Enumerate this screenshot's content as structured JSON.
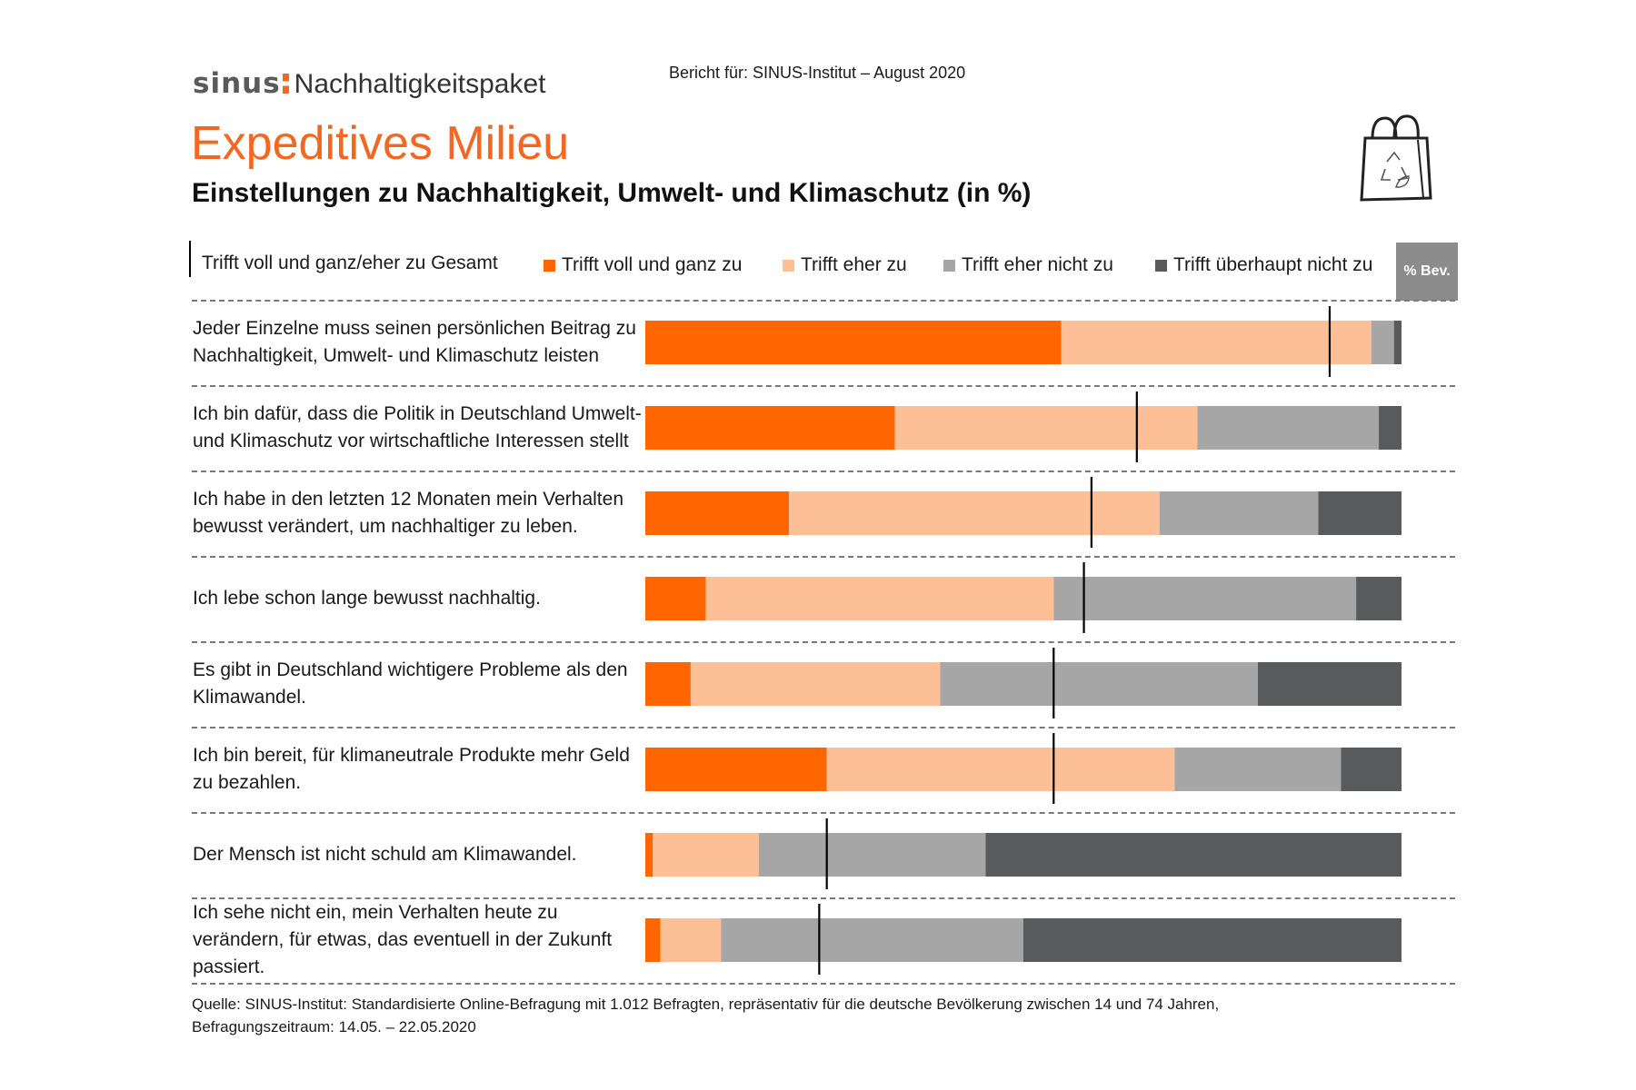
{
  "header": {
    "brand_logo": "sinus",
    "brand_name": "Nachhaltigkeitspaket",
    "report": "Bericht für: SINUS-Institut – August 2020",
    "milieu": "Expeditives Milieu",
    "subtitle": "Einstellungen zu Nachhaltigkeit, Umwelt- und Klimaschutz (in %)",
    "icon": "shopping-bag-recycle-icon"
  },
  "legend": {
    "total_label": "Trifft voll und ganz/eher zu Gesamt",
    "bev_label": "% Bev."
  },
  "colors": {
    "voll": "#ff6600",
    "eher": "#fdbf96",
    "eher_nicht": "#a6a6a6",
    "ueberhaupt_nicht": "#595a5c",
    "marker": "#000000"
  },
  "chart_data": {
    "type": "bar",
    "orientation": "horizontal",
    "stacked": true,
    "xlim": [
      0,
      100
    ],
    "categories": [
      "Jeder Einzelne muss seinen persönlichen Beitrag zu Nachhaltigkeit, Umwelt- und Klimaschutz leisten",
      "Ich bin dafür, dass die Politik in Deutschland Umwelt- und Klimaschutz vor wirtschaftliche Interessen stellt",
      "Ich habe in den letzten 12 Monaten mein Verhalten bewusst verändert, um nachhaltiger zu leben.",
      "Ich lebe schon lange bewusst nachhaltig.",
      "Es gibt in Deutschland wichtigere Probleme als den Klimawandel.",
      "Ich bin bereit, für klimaneutrale Produkte mehr Geld zu bezahlen.",
      "Der Mensch ist nicht schuld am Klimawandel.",
      "Ich sehe nicht ein, mein Verhalten heute zu verändern, für etwas, das eventuell in der Zukunft passiert."
    ],
    "series": [
      {
        "name": "Trifft voll und ganz zu",
        "color": "#ff6600",
        "values": [
          55,
          33,
          19,
          8,
          6,
          24,
          1,
          2
        ]
      },
      {
        "name": "Trifft eher zu",
        "color": "#fdbf96",
        "values": [
          41,
          40,
          49,
          46,
          33,
          46,
          14,
          8
        ]
      },
      {
        "name": "Trifft eher nicht zu",
        "color": "#a6a6a6",
        "values": [
          3,
          24,
          21,
          40,
          42,
          22,
          30,
          40
        ]
      },
      {
        "name": "Trifft überhaupt nicht zu",
        "color": "#595a5c",
        "values": [
          1,
          3,
          11,
          6,
          19,
          8,
          55,
          50
        ]
      }
    ],
    "marker": {
      "name": "Trifft voll und ganz/eher zu Gesamt",
      "values": [
        90.5,
        65,
        59,
        58,
        54,
        54,
        24,
        23
      ]
    },
    "legend_position": "top",
    "grid": false
  },
  "footer": {
    "source_line1": "Quelle: SINUS-Institut: Standardisierte Online-Befragung mit 1.012 Befragten, repräsentativ für die deutsche Bevölkerung zwischen 14 und 74 Jahren,",
    "source_line2": "Befragungszeitraum: 14.05. – 22.05.2020"
  }
}
